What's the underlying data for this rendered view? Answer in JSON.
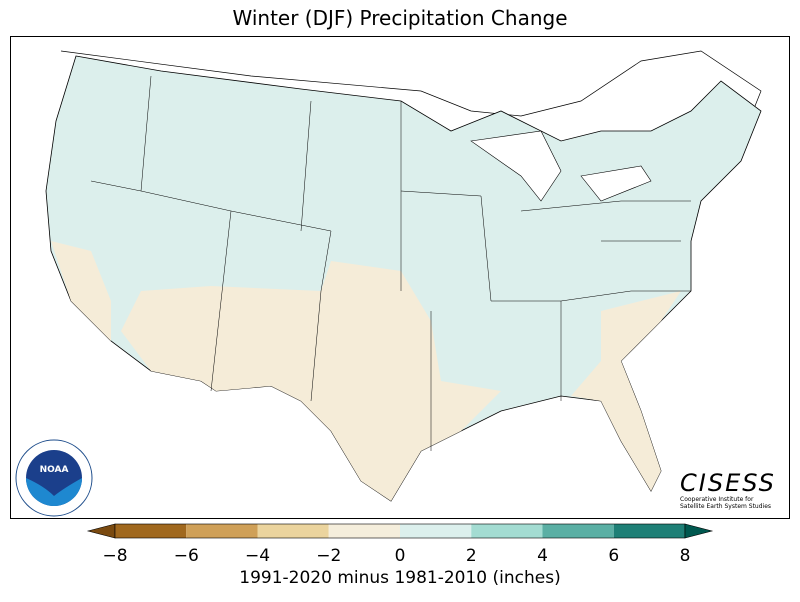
{
  "title": "Winter (DJF) Precipitation Change",
  "colorbar": {
    "ticks": [
      "−8",
      "−6",
      "−4",
      "−2",
      "0",
      "2",
      "4",
      "6",
      "8"
    ],
    "label": "1991-2020 minus 1981-2010 (inches)",
    "colors": [
      "#a0681e",
      "#cfa058",
      "#ebd49e",
      "#f5eedc",
      "#dcf0ed",
      "#a3dcd2",
      "#5aafa4",
      "#1e7f76"
    ],
    "under_color": "#7a4a10",
    "over_color": "#00584f"
  },
  "logos": {
    "noaa": "NOAA",
    "noaa_ring": "NATIONAL OCEANIC AND ATMOSPHERIC ADMINISTRATION · U.S. DEPARTMENT OF COMMERCE",
    "cisess": "CISESS",
    "cisess_sub1": "Cooperative Institute for",
    "cisess_sub2": "Satellite Earth System Studies"
  }
}
